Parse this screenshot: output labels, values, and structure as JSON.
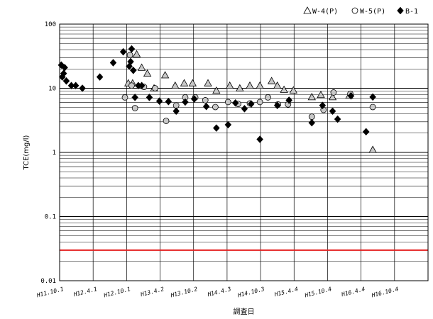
{
  "chart_data": {
    "type": "scatter",
    "xlabel": "調査日",
    "ylabel": "TCE(mg/l)",
    "y_scale": "log",
    "ylim": [
      0.01,
      100
    ],
    "y_ticks": [
      "100",
      "10",
      "1",
      "0.1",
      "0.01"
    ],
    "x_ticks": [
      "H11.10.1",
      "H12.4.1",
      "H12.10.1",
      "H13.4.2",
      "H13.10.2",
      "H14.4.3",
      "H14.10.3",
      "H15.4.4",
      "H15.10.4",
      "H16.4.4",
      "H16.10.4"
    ],
    "grid": true,
    "legend_position": "top-right",
    "reference_line": {
      "value": 0.03,
      "color": "#e52020"
    },
    "series": [
      {
        "name": "W-4(P)",
        "marker": "triangle",
        "color": "#c8c8c8",
        "points": [
          [
            2.05,
            12
          ],
          [
            2.18,
            12
          ],
          [
            2.3,
            34
          ],
          [
            2.45,
            21
          ],
          [
            2.62,
            17
          ],
          [
            2.82,
            10
          ],
          [
            3.15,
            16
          ],
          [
            3.45,
            11
          ],
          [
            3.72,
            12
          ],
          [
            3.97,
            12
          ],
          [
            4.43,
            12
          ],
          [
            4.68,
            9.2
          ],
          [
            5.08,
            11
          ],
          [
            5.38,
            10
          ],
          [
            5.68,
            11
          ],
          [
            5.98,
            11
          ],
          [
            6.33,
            13
          ],
          [
            6.5,
            11
          ],
          [
            6.7,
            9.5
          ],
          [
            6.98,
            9.3
          ],
          [
            7.53,
            7.3
          ],
          [
            7.8,
            7.9
          ],
          [
            8.15,
            7.3
          ],
          [
            8.65,
            7.7
          ],
          [
            9.35,
            1.1
          ]
        ]
      },
      {
        "name": "W-5(P)",
        "marker": "circle",
        "color": "#c8c8c8",
        "points": [
          [
            1.95,
            7.2
          ],
          [
            2.15,
            11
          ],
          [
            2.1,
            33
          ],
          [
            2.25,
            4.9
          ],
          [
            2.52,
            10.5
          ],
          [
            2.85,
            10
          ],
          [
            3.18,
            3.1
          ],
          [
            3.48,
            5.4
          ],
          [
            3.75,
            7.2
          ],
          [
            4.05,
            7.2
          ],
          [
            4.35,
            6.5
          ],
          [
            4.65,
            5.1
          ],
          [
            5.03,
            6.1
          ],
          [
            5.33,
            5.7
          ],
          [
            5.68,
            5.8
          ],
          [
            5.98,
            6.1
          ],
          [
            6.22,
            7.2
          ],
          [
            6.52,
            5.6
          ],
          [
            6.82,
            5.6
          ],
          [
            7.53,
            3.6
          ],
          [
            7.88,
            4.6
          ],
          [
            8.18,
            8.6
          ],
          [
            8.68,
            8.2
          ],
          [
            9.35,
            5.1
          ]
        ]
      },
      {
        "name": "B-1",
        "marker": "diamond",
        "color": "#000000",
        "points": [
          [
            0.05,
            23
          ],
          [
            0.08,
            15
          ],
          [
            0.12,
            17
          ],
          [
            0.15,
            21
          ],
          [
            0.2,
            13
          ],
          [
            0.35,
            11
          ],
          [
            0.48,
            11
          ],
          [
            0.68,
            10
          ],
          [
            1.2,
            15
          ],
          [
            1.6,
            25
          ],
          [
            1.9,
            37
          ],
          [
            2.08,
            22
          ],
          [
            2.12,
            26
          ],
          [
            2.15,
            41
          ],
          [
            2.2,
            19
          ],
          [
            2.25,
            7.2
          ],
          [
            2.35,
            11
          ],
          [
            2.45,
            11
          ],
          [
            2.68,
            7.2
          ],
          [
            2.98,
            6.3
          ],
          [
            3.25,
            6.2
          ],
          [
            3.48,
            4.4
          ],
          [
            3.75,
            6.1
          ],
          [
            4.02,
            6.8
          ],
          [
            4.38,
            5.2
          ],
          [
            4.68,
            2.4
          ],
          [
            5.03,
            2.7
          ],
          [
            5.25,
            5.9
          ],
          [
            5.52,
            4.8
          ],
          [
            5.72,
            5.7
          ],
          [
            5.98,
            1.6
          ],
          [
            6.5,
            5.4
          ],
          [
            6.85,
            6.5
          ],
          [
            7.53,
            2.9
          ],
          [
            7.85,
            5.4
          ],
          [
            8.15,
            4.4
          ],
          [
            8.3,
            3.3
          ],
          [
            8.7,
            7.6
          ],
          [
            9.15,
            2.1
          ],
          [
            9.35,
            7.3
          ]
        ]
      }
    ]
  }
}
